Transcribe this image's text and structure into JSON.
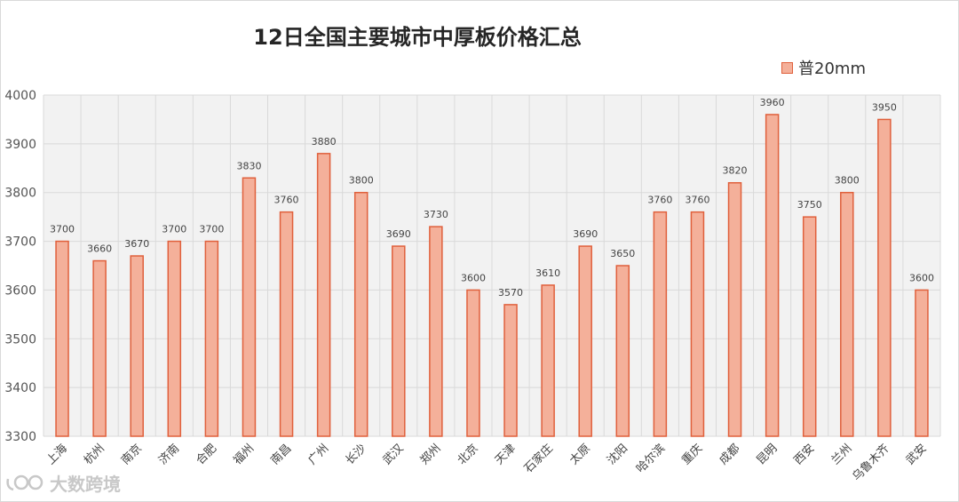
{
  "chart_data": {
    "type": "bar",
    "title": "12日全国主要城市中厚板价格汇总",
    "categories": [
      "上海",
      "杭州",
      "南京",
      "济南",
      "合肥",
      "福州",
      "南昌",
      "广州",
      "长沙",
      "武汉",
      "郑州",
      "北京",
      "天津",
      "石家庄",
      "太原",
      "沈阳",
      "哈尔滨",
      "重庆",
      "成都",
      "昆明",
      "西安",
      "兰州",
      "乌鲁木齐",
      "武安"
    ],
    "series": [
      {
        "name": "普20mm",
        "values": [
          3700,
          3660,
          3670,
          3700,
          3700,
          3830,
          3760,
          3880,
          3800,
          3690,
          3730,
          3600,
          3570,
          3610,
          3690,
          3650,
          3760,
          3760,
          3820,
          3960,
          3750,
          3800,
          3950,
          3600
        ]
      }
    ],
    "ylim": [
      3300,
      4000
    ],
    "yticks": [
      3300,
      3400,
      3500,
      3600,
      3700,
      3800,
      3900,
      4000
    ],
    "grid": true,
    "legend_position": "top-right",
    "bar_fill": "#f4b09a",
    "bar_stroke": "#e0603c"
  },
  "watermark": {
    "text": "大数跨境",
    "icon": "brand-logo-icon"
  }
}
